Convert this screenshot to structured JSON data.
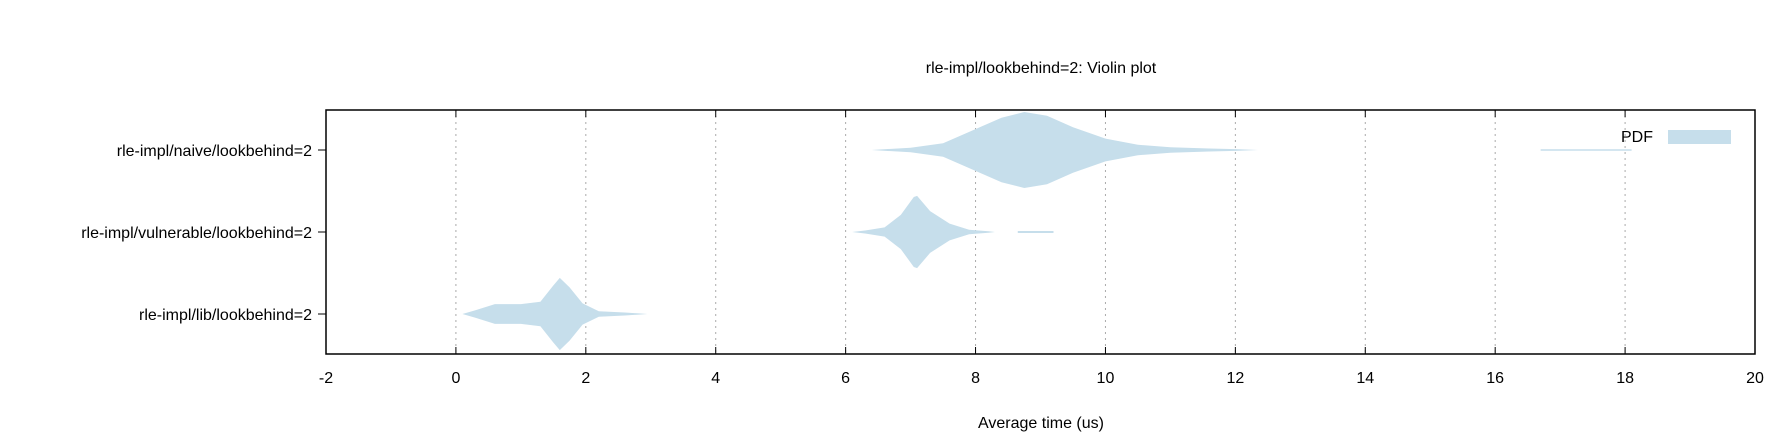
{
  "chart_data": {
    "type": "violin",
    "title": "rle-impl/lookbehind=2: Violin plot",
    "xlabel": "Average time (us)",
    "ylabel": "",
    "xlim": [
      -2,
      20
    ],
    "xticks": [
      "-2",
      "0",
      "2",
      "4",
      "6",
      "8",
      "10",
      "12",
      "14",
      "16",
      "18",
      "20"
    ],
    "grid": true,
    "legend": {
      "position": "top-right",
      "label": "PDF"
    },
    "colors": {
      "fill": "#c6deeb",
      "axis": "#000000",
      "grid": "#aaaaaa"
    },
    "series": [
      {
        "name": "rle-impl/naive/lookbehind=2",
        "profile": [
          [
            6.4,
            0.0
          ],
          [
            7.0,
            0.06
          ],
          [
            7.5,
            0.18
          ],
          [
            8.0,
            0.55
          ],
          [
            8.4,
            0.85
          ],
          [
            8.75,
            1.0
          ],
          [
            9.1,
            0.9
          ],
          [
            9.5,
            0.6
          ],
          [
            10.0,
            0.3
          ],
          [
            10.5,
            0.14
          ],
          [
            11.0,
            0.07
          ],
          [
            11.6,
            0.04
          ],
          [
            12.0,
            0.025
          ],
          [
            12.35,
            0.0
          ]
        ]
      },
      {
        "name": "rle-impl/vulnerable/lookbehind=2",
        "profile": [
          [
            6.1,
            0.0
          ],
          [
            6.3,
            0.04
          ],
          [
            6.6,
            0.12
          ],
          [
            6.85,
            0.45
          ],
          [
            7.05,
            0.92
          ],
          [
            7.1,
            0.95
          ],
          [
            7.3,
            0.55
          ],
          [
            7.6,
            0.22
          ],
          [
            7.9,
            0.06
          ],
          [
            8.2,
            0.02
          ],
          [
            8.3,
            0.0
          ]
        ]
      },
      {
        "name": "rle-impl/lib/lookbehind=2",
        "profile": [
          [
            0.1,
            0.0
          ],
          [
            0.3,
            0.1
          ],
          [
            0.6,
            0.26
          ],
          [
            1.0,
            0.26
          ],
          [
            1.3,
            0.32
          ],
          [
            1.5,
            0.75
          ],
          [
            1.6,
            0.95
          ],
          [
            1.75,
            0.7
          ],
          [
            1.95,
            0.28
          ],
          [
            2.2,
            0.07
          ],
          [
            2.6,
            0.04
          ],
          [
            2.95,
            0.0
          ]
        ]
      }
    ]
  }
}
